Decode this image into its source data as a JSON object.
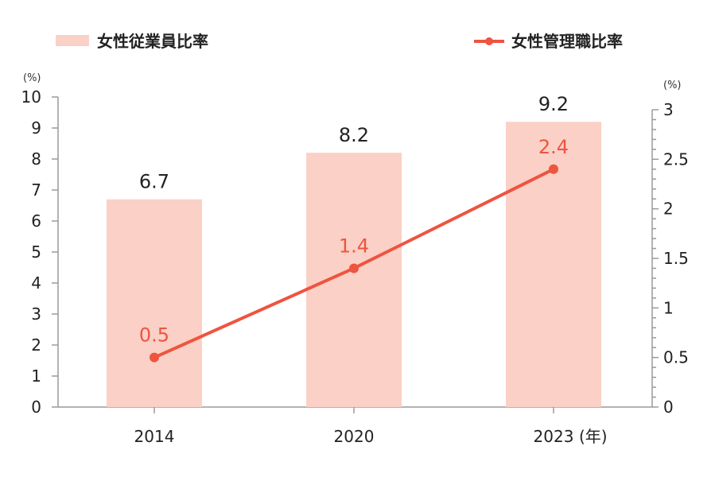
{
  "chart_data": {
    "type": "bar+line",
    "categories": [
      "2014",
      "2020",
      "2023"
    ],
    "x_unit": "(年)",
    "series": [
      {
        "name": "女性従業員比率",
        "type": "bar",
        "axis": "left",
        "values": [
          6.7,
          8.2,
          9.2
        ],
        "labels": [
          "6.7",
          "8.2",
          "9.2"
        ],
        "color": "#fbd0c6"
      },
      {
        "name": "女性管理職比率",
        "type": "line",
        "axis": "right",
        "values": [
          0.5,
          1.4,
          2.4
        ],
        "labels": [
          "0.5",
          "1.4",
          "2.4"
        ],
        "color": "#ee5440"
      }
    ],
    "y_left": {
      "unit": "(%)",
      "ylim": [
        0,
        10
      ],
      "ticks": [
        "0",
        "1",
        "2",
        "3",
        "4",
        "5",
        "6",
        "7",
        "8",
        "9",
        "10"
      ]
    },
    "y_right": {
      "unit": "(%)",
      "ylim": [
        0,
        3
      ],
      "ticks": [
        "0",
        "0.5",
        "1",
        "1.5",
        "2",
        "2.5",
        "3"
      ]
    },
    "legend_placement": "top",
    "grid": false
  }
}
